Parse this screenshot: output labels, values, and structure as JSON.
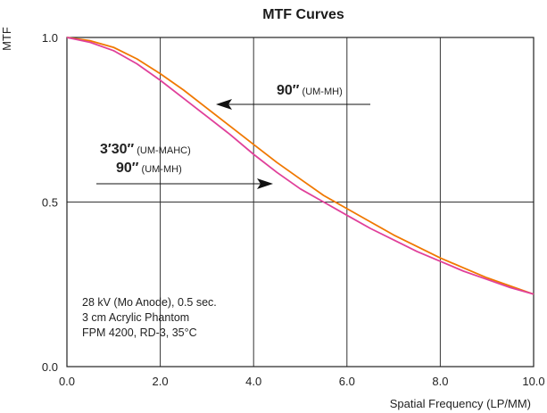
{
  "chart_data": {
    "type": "line",
    "title": "MTF Curves",
    "xlabel": "Spatial Frequency (LP/MM)",
    "ylabel": "MTF",
    "xlim": [
      0,
      10
    ],
    "ylim": [
      0,
      1
    ],
    "x_ticks": [
      "0.0",
      "2.0",
      "4.0",
      "6.0",
      "8.0",
      "10.0"
    ],
    "y_ticks": [
      "0.0",
      "0.5",
      "1.0"
    ],
    "grid": true,
    "series": [
      {
        "color": "#f07800",
        "x": [
          0,
          0.5,
          1,
          1.5,
          2,
          2.5,
          3,
          3.5,
          4,
          4.5,
          5,
          5.5,
          6,
          6.5,
          7,
          7.5,
          8,
          8.5,
          9,
          9.5,
          10
        ],
        "y": [
          1.0,
          0.99,
          0.97,
          0.935,
          0.89,
          0.84,
          0.785,
          0.73,
          0.675,
          0.62,
          0.57,
          0.52,
          0.48,
          0.44,
          0.4,
          0.365,
          0.33,
          0.3,
          0.27,
          0.245,
          0.22
        ]
      },
      {
        "color": "#e0409a",
        "x": [
          0,
          0.5,
          1,
          1.5,
          2,
          2.5,
          3,
          3.5,
          4,
          4.5,
          5,
          5.5,
          6,
          6.5,
          7,
          7.5,
          8,
          8.5,
          9,
          9.5,
          10
        ],
        "y": [
          1.0,
          0.985,
          0.96,
          0.92,
          0.87,
          0.815,
          0.76,
          0.705,
          0.645,
          0.59,
          0.54,
          0.5,
          0.46,
          0.42,
          0.385,
          0.35,
          0.32,
          0.29,
          0.265,
          0.24,
          0.22
        ]
      }
    ],
    "annotations": [
      {
        "main": "90″",
        "sub": "(UM-MH)"
      },
      {
        "main": "3′30″",
        "sub": "(UM-MAHC)"
      },
      {
        "main": "90″",
        "sub": "(UM-MH)"
      }
    ],
    "notes": [
      "28 kV (Mo Anode), 0.5 sec.",
      "3 cm Acrylic Phantom",
      "FPM 4200, RD-3, 35°C"
    ]
  }
}
